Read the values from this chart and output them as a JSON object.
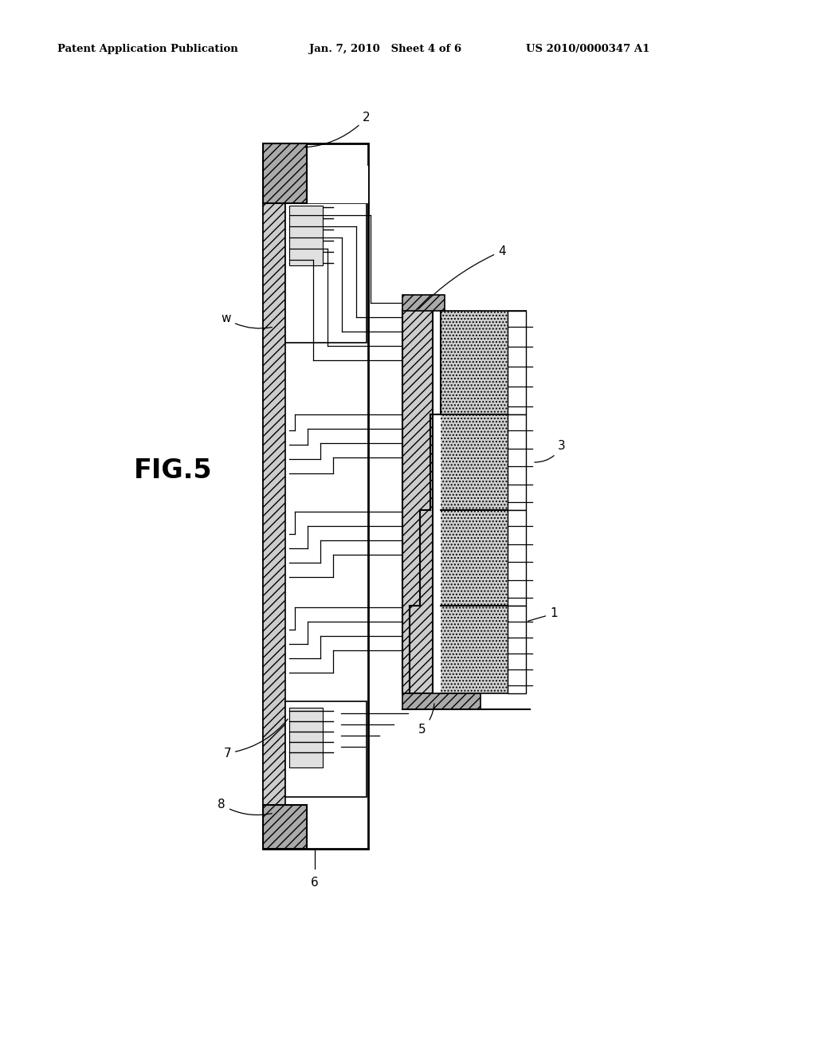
{
  "bg_color": "#ffffff",
  "fig_label": "FIG.5",
  "header_left": "Patent Application Publication",
  "header_mid": "Jan. 7, 2010   Sheet 4 of 6",
  "header_right": "US 2010/0000347 A1"
}
